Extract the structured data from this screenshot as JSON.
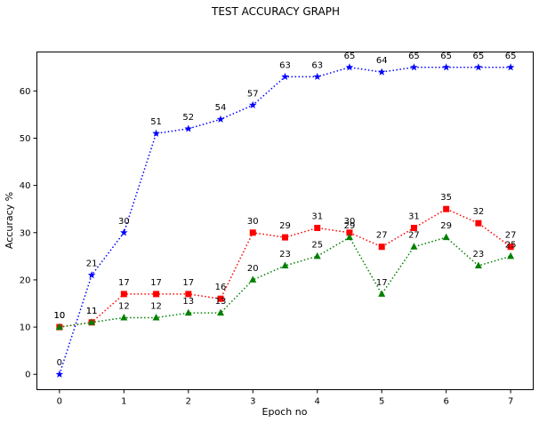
{
  "chart_data": {
    "type": "line",
    "title": "TEST ACCURACY GRAPH",
    "xlabel": "Epoch no",
    "ylabel": "Accuracy %",
    "x": [
      0,
      0.5,
      1,
      1.5,
      2,
      2.5,
      3,
      3.5,
      4,
      4.5,
      5,
      5.5,
      6,
      6.5,
      7
    ],
    "xlim": [
      -0.35,
      7.35
    ],
    "ylim": [
      -3.25,
      68.25
    ],
    "xticks": [
      0,
      1,
      2,
      3,
      4,
      5,
      6,
      7
    ],
    "yticks": [
      0,
      10,
      20,
      30,
      40,
      50,
      60
    ],
    "grid": false,
    "series": [
      {
        "color": "#0000ff",
        "marker": "star",
        "linestyle": "dotted",
        "values": [
          0,
          21,
          30,
          51,
          52,
          54,
          57,
          63,
          63,
          65,
          64,
          65,
          65,
          65,
          65
        ]
      },
      {
        "color": "#ff0000",
        "marker": "square",
        "linestyle": "dotted",
        "values": [
          10,
          11,
          17,
          17,
          17,
          16,
          30,
          29,
          31,
          30,
          27,
          31,
          35,
          32,
          27
        ]
      },
      {
        "color": "#008000",
        "marker": "triangle",
        "linestyle": "dotted",
        "values": [
          10,
          11,
          12,
          12,
          13,
          13,
          20,
          23,
          25,
          29,
          17,
          27,
          29,
          23,
          25
        ]
      }
    ]
  }
}
